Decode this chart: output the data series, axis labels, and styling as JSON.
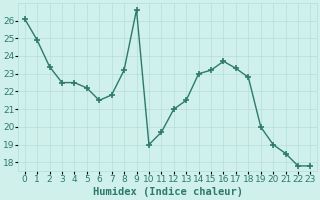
{
  "xlabel": "Humidex (Indice chaleur)",
  "x": [
    0,
    1,
    2,
    3,
    4,
    5,
    6,
    7,
    8,
    9,
    10,
    11,
    12,
    13,
    14,
    15,
    16,
    17,
    18,
    19,
    20,
    21,
    22,
    23
  ],
  "y": [
    26.1,
    24.9,
    23.4,
    22.5,
    22.5,
    22.2,
    21.5,
    21.8,
    23.2,
    26.6,
    19.0,
    19.7,
    21.0,
    21.5,
    23.0,
    23.2,
    23.7,
    23.3,
    22.8,
    20.0,
    19.0,
    18.5,
    17.8,
    17.8
  ],
  "line_color": "#2d7a6a",
  "marker": "+",
  "marker_size": 4,
  "marker_linewidth": 1.2,
  "line_width": 1.0,
  "background_color": "#cff0eb",
  "grid_color": "#b8ddd8",
  "ylim": [
    17.5,
    27.0
  ],
  "yticks": [
    18,
    19,
    20,
    21,
    22,
    23,
    24,
    25,
    26
  ],
  "tick_label_fontsize": 6.5,
  "xlabel_fontsize": 7.5,
  "xlabel_color": "#2d7a6a",
  "ytick_color": "#2d7a6a",
  "xtick_color": "#2d7a6a"
}
